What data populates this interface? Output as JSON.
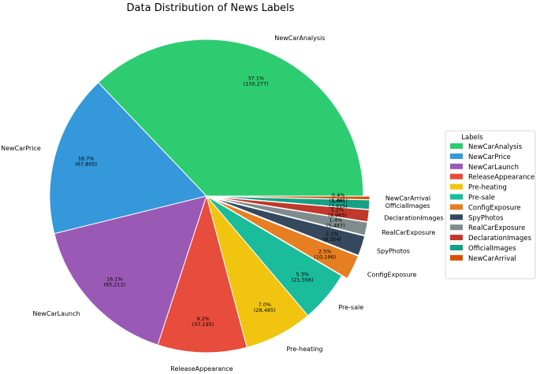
{
  "chart_data": {
    "type": "pie",
    "title": "Data Distribution of News Labels",
    "legend": {
      "title": "Labels",
      "placement": "right"
    },
    "slices": [
      {
        "label": "NewCarAnalysis",
        "pct": "37.1%",
        "count": "(150,277)",
        "value": 150277,
        "color": "#2ecc71"
      },
      {
        "label": "NewCarPrice",
        "pct": "16.7%",
        "count": "(67,805)",
        "value": 67805,
        "color": "#3498db"
      },
      {
        "label": "NewCarLaunch",
        "pct": "16.1%",
        "count": "(65,212)",
        "value": 65212,
        "color": "#9b59b6"
      },
      {
        "label": "ReleaseAppearance",
        "pct": "9.2%",
        "count": "(37,195)",
        "value": 37195,
        "color": "#e74c3c"
      },
      {
        "label": "Pre-heating",
        "pct": "7.0%",
        "count": "(28,485)",
        "value": 28485,
        "color": "#f1c40f"
      },
      {
        "label": "Pre-sale",
        "pct": "5.3%",
        "count": "(21,556)",
        "value": 21556,
        "color": "#1abc9c"
      },
      {
        "label": "ConfigExposure",
        "pct": "2.5%",
        "count": "(10,196)",
        "value": 10196,
        "color": "#e67e22"
      },
      {
        "label": "SpyPhotos",
        "pct": "2.1%",
        "count": "(8,354)",
        "value": 8354,
        "color": "#34495e"
      },
      {
        "label": "RealCarExposure",
        "pct": "1.4%",
        "count": "(5,487)",
        "value": 5487,
        "color": "#7f8c8d"
      },
      {
        "label": "DeclarationImages",
        "pct": "1.2%",
        "count": "(4,965)",
        "value": 4965,
        "color": "#c0392b"
      },
      {
        "label": "OfficialImages",
        "pct": "1.0%",
        "count": "(3,915)",
        "value": 3915,
        "color": "#16a085"
      },
      {
        "label": "NewCarArrival",
        "pct": "0.4%",
        "count": "(1,461)",
        "value": 1461,
        "color": "#d35400"
      }
    ]
  }
}
